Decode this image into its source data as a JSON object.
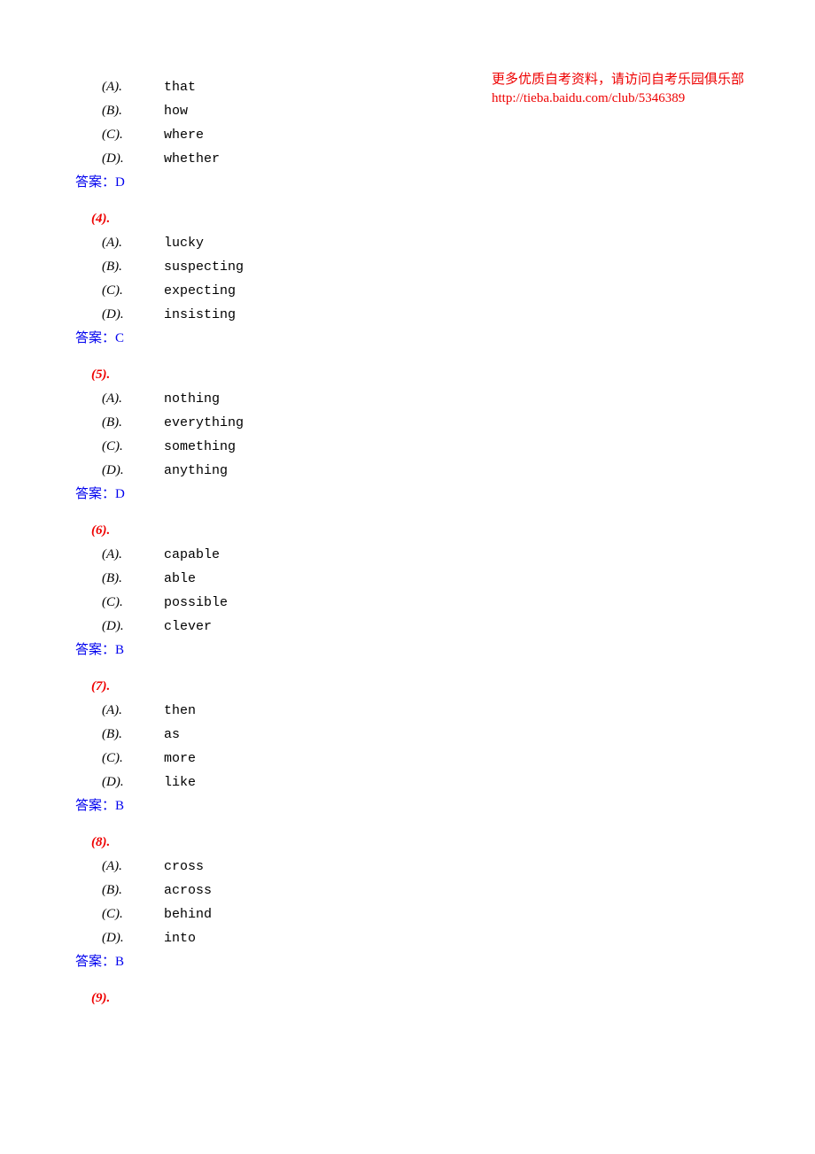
{
  "header": {
    "line1": "更多优质自考资料，请访问自考乐园俱乐部",
    "line2": "http://tieba.baidu.com/club/5346389"
  },
  "answer_prefix": "答案：",
  "questions": [
    {
      "num": "",
      "options": [
        {
          "label": "(A).",
          "text": "that"
        },
        {
          "label": "(B).",
          "text": "how"
        },
        {
          "label": "(C).",
          "text": "where"
        },
        {
          "label": "(D).",
          "text": "whether"
        }
      ],
      "answer": "D"
    },
    {
      "num": "(4).",
      "options": [
        {
          "label": "(A).",
          "text": "lucky"
        },
        {
          "label": "(B).",
          "text": "suspecting"
        },
        {
          "label": "(C).",
          "text": "expecting"
        },
        {
          "label": "(D).",
          "text": "insisting"
        }
      ],
      "answer": "C"
    },
    {
      "num": "(5).",
      "options": [
        {
          "label": "(A).",
          "text": "nothing"
        },
        {
          "label": "(B).",
          "text": "everything"
        },
        {
          "label": "(C).",
          "text": "something"
        },
        {
          "label": "(D).",
          "text": "anything"
        }
      ],
      "answer": "D"
    },
    {
      "num": "(6).",
      "options": [
        {
          "label": "(A).",
          "text": "capable"
        },
        {
          "label": "(B).",
          "text": "able"
        },
        {
          "label": "(C).",
          "text": "possible"
        },
        {
          "label": "(D).",
          "text": "clever"
        }
      ],
      "answer": "B"
    },
    {
      "num": "(7).",
      "options": [
        {
          "label": "(A).",
          "text": "then"
        },
        {
          "label": "(B).",
          "text": "as"
        },
        {
          "label": "(C).",
          "text": "more"
        },
        {
          "label": "(D).",
          "text": "like"
        }
      ],
      "answer": "B"
    },
    {
      "num": "(8).",
      "options": [
        {
          "label": "(A).",
          "text": "cross"
        },
        {
          "label": "(B).",
          "text": "across"
        },
        {
          "label": "(C).",
          "text": "behind"
        },
        {
          "label": "(D).",
          "text": "into"
        }
      ],
      "answer": "B"
    },
    {
      "num": "(9).",
      "options": [],
      "answer": ""
    }
  ]
}
